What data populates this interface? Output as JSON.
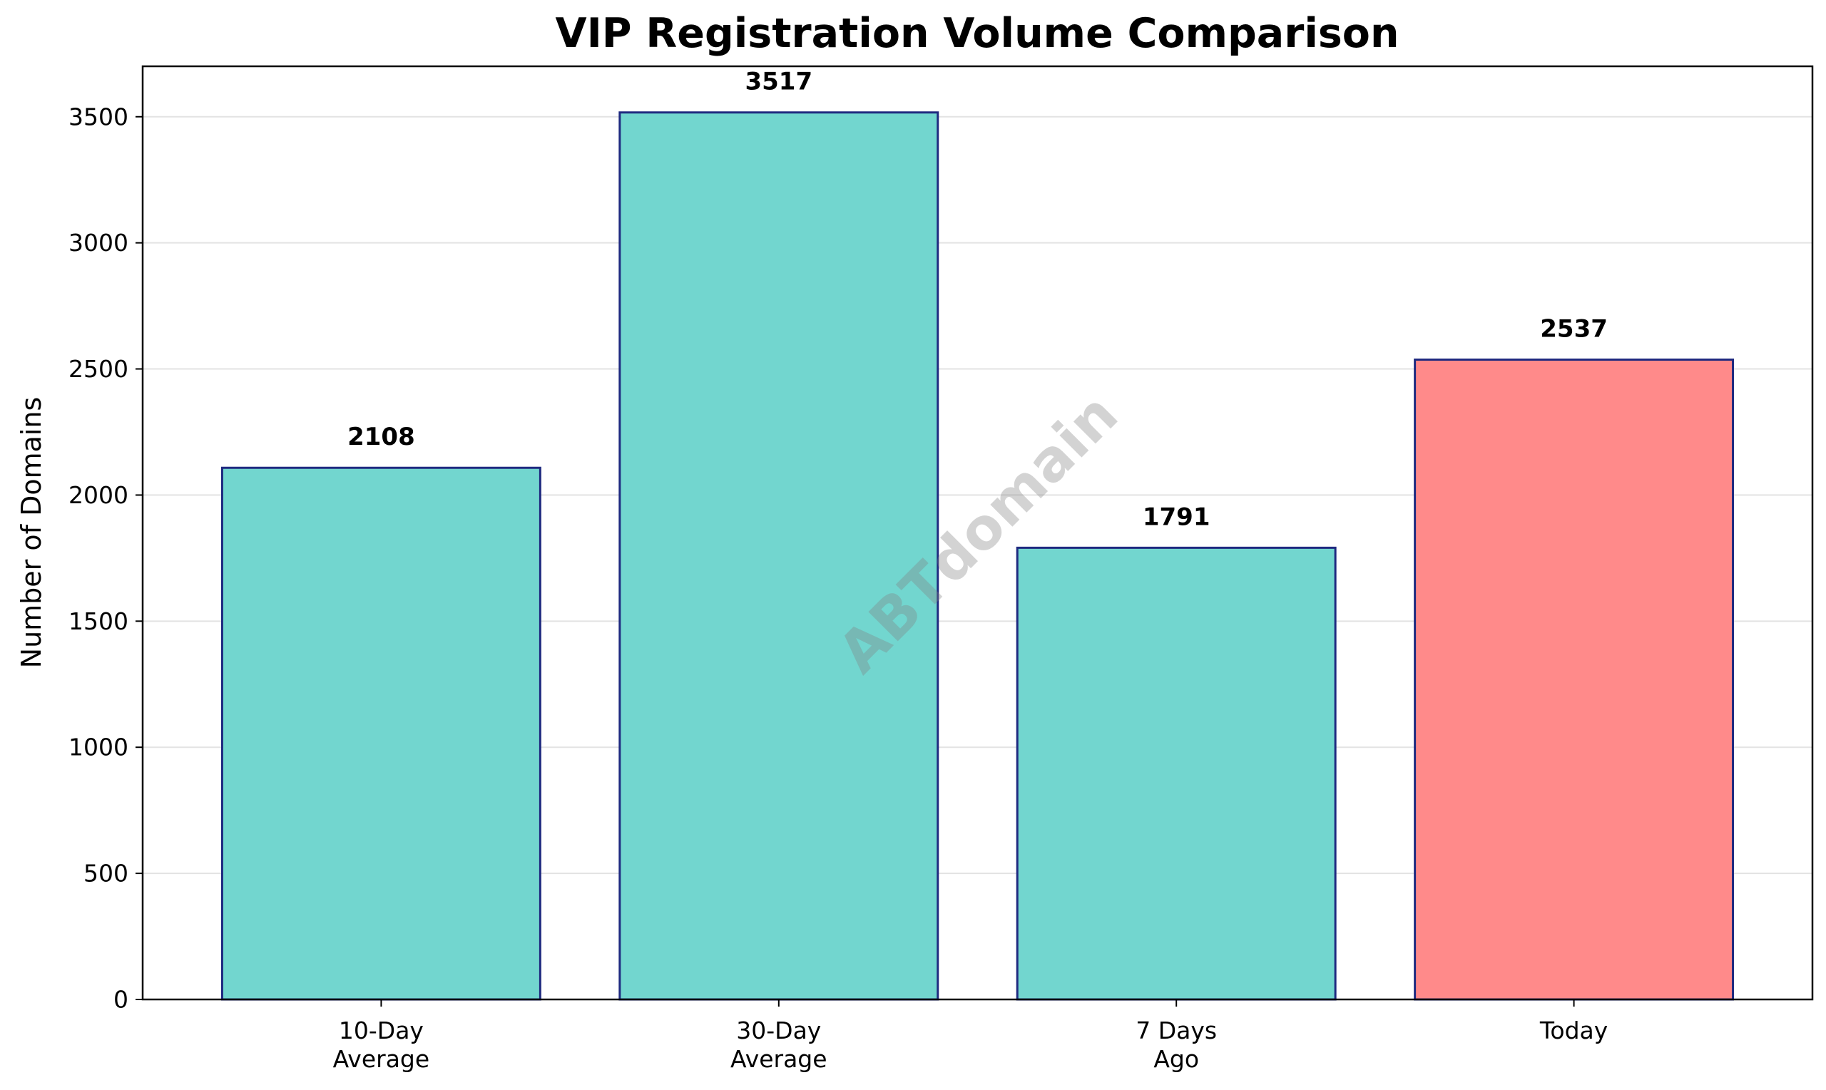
{
  "chart_data": {
    "type": "bar",
    "title": "VIP Registration Volume Comparison",
    "xlabel": "",
    "ylabel": "Number of Domains",
    "categories": [
      [
        "10-Day",
        "Average"
      ],
      [
        "30-Day",
        "Average"
      ],
      [
        "7 Days",
        "Ago"
      ],
      [
        "Today"
      ]
    ],
    "values": [
      2108,
      3517,
      1791,
      2537
    ],
    "data_labels": [
      "2108",
      "3517",
      "1791",
      "2537"
    ],
    "bar_colors": [
      "#72d6cf",
      "#72d6cf",
      "#72d6cf",
      "#ff8a8a"
    ],
    "edge_color": "#1f2a80",
    "ylim": [
      0,
      3700
    ],
    "yticks": [
      0,
      500,
      1000,
      1500,
      2000,
      2500,
      3000,
      3500
    ],
    "grid": "horizontal",
    "watermark": "ABTdomain"
  }
}
